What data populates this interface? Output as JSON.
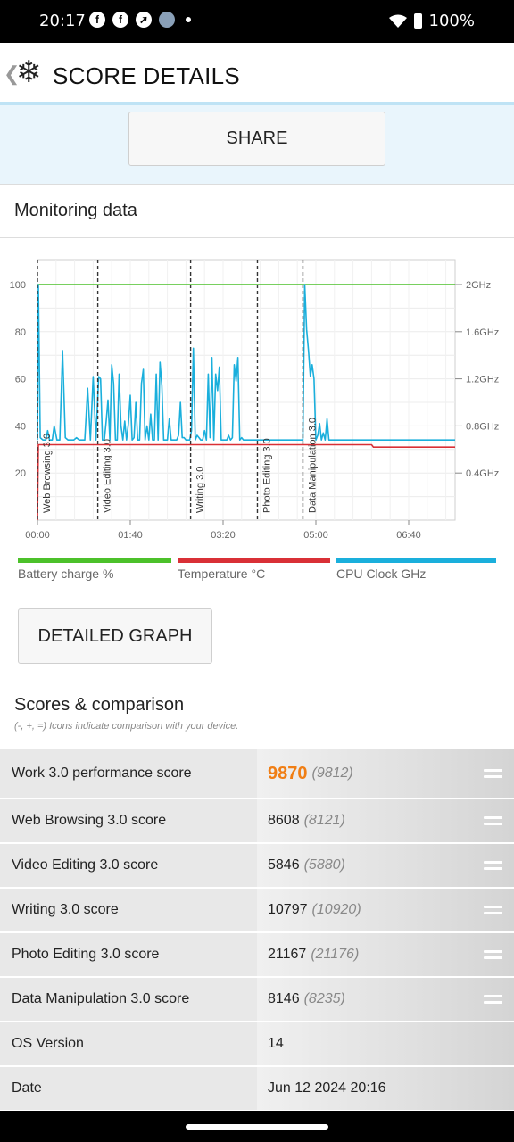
{
  "status_bar": {
    "time": "20:17",
    "battery": "100%",
    "app_icons": [
      "facebook-icon",
      "facebook-icon",
      "compass-icon",
      "avatar-icon"
    ]
  },
  "header": {
    "title": "SCORE DETAILS",
    "logo_icon": "snowflake-icon",
    "back_icon": "chevron-left-icon"
  },
  "share_label": "SHARE",
  "monitoring": {
    "title": "Monitoring data"
  },
  "chart_data": {
    "type": "line",
    "x_ticks": [
      "00:00",
      "01:40",
      "03:20",
      "05:00",
      "06:40"
    ],
    "y_left_ticks": [
      "20",
      "40",
      "60",
      "80",
      "100"
    ],
    "y_right_ticks": [
      "0.4GHz",
      "0.8GHz",
      "1.2GHz",
      "1.6GHz",
      "2GHz"
    ],
    "ylim_left": [
      0,
      100
    ],
    "ylim_right": [
      0,
      2
    ],
    "grid": true,
    "segments": [
      {
        "label": "Web Browsing 3.0",
        "start_min": 0
      },
      {
        "label": "Video Editing 3.0",
        "start_min": 65
      },
      {
        "label": "Writing 3.0",
        "start_min": 165
      },
      {
        "label": "Photo Editing 3.0",
        "start_min": 237
      },
      {
        "label": "Data Manipulation 3.0",
        "start_min": 286
      }
    ],
    "series": [
      {
        "name": "Battery charge %",
        "color": "#4cc12a",
        "axis": "left",
        "points": [
          [
            0,
            100
          ],
          [
            450,
            100
          ]
        ]
      },
      {
        "name": "Temperature °C",
        "color": "#d93036",
        "axis": "left",
        "points": [
          [
            0,
            0
          ],
          [
            1,
            32
          ],
          [
            360,
            32
          ],
          [
            362,
            31
          ],
          [
            450,
            31
          ]
        ]
      },
      {
        "name": "CPU Clock GHz",
        "color": "#1aafdc",
        "axis": "right",
        "points": [
          [
            0,
            0.68
          ],
          [
            1,
            2.0
          ],
          [
            3,
            0.7
          ],
          [
            6,
            0.68
          ],
          [
            9,
            0.68
          ],
          [
            11,
            0.76
          ],
          [
            13,
            0.68
          ],
          [
            16,
            0.68
          ],
          [
            18,
            0.8
          ],
          [
            21,
            0.68
          ],
          [
            24,
            0.68
          ],
          [
            27,
            1.44
          ],
          [
            30,
            0.7
          ],
          [
            33,
            0.68
          ],
          [
            36,
            0.68
          ],
          [
            39,
            0.68
          ],
          [
            42,
            0.7
          ],
          [
            45,
            0.68
          ],
          [
            48,
            0.68
          ],
          [
            51,
            0.68
          ],
          [
            54,
            1.12
          ],
          [
            57,
            0.68
          ],
          [
            60,
            1.22
          ],
          [
            63,
            0.68
          ],
          [
            66,
            1.22
          ],
          [
            68,
            1.2
          ],
          [
            70,
            0.68
          ],
          [
            72,
            0.68
          ],
          [
            74,
            0.84
          ],
          [
            76,
            1.02
          ],
          [
            78,
            0.68
          ],
          [
            80,
            1.32
          ],
          [
            82,
            1.16
          ],
          [
            84,
            0.68
          ],
          [
            86,
            0.68
          ],
          [
            88,
            1.24
          ],
          [
            90,
            0.8
          ],
          [
            92,
            0.68
          ],
          [
            94,
            0.84
          ],
          [
            96,
            0.68
          ],
          [
            98,
            0.82
          ],
          [
            100,
            1.06
          ],
          [
            102,
            0.68
          ],
          [
            104,
            0.7
          ],
          [
            106,
            1.0
          ],
          [
            108,
            0.68
          ],
          [
            110,
            0.68
          ],
          [
            112,
            1.16
          ],
          [
            114,
            1.28
          ],
          [
            116,
            0.68
          ],
          [
            118,
            0.8
          ],
          [
            120,
            0.68
          ],
          [
            122,
            0.9
          ],
          [
            124,
            0.68
          ],
          [
            126,
            0.68
          ],
          [
            128,
            1.24
          ],
          [
            130,
            0.68
          ],
          [
            132,
            1.34
          ],
          [
            134,
            1.14
          ],
          [
            136,
            0.68
          ],
          [
            138,
            0.68
          ],
          [
            140,
            0.68
          ],
          [
            142,
            0.86
          ],
          [
            144,
            0.68
          ],
          [
            146,
            0.68
          ],
          [
            148,
            0.68
          ],
          [
            150,
            0.68
          ],
          [
            152,
            0.72
          ],
          [
            154,
            1.0
          ],
          [
            156,
            0.7
          ],
          [
            158,
            0.7
          ],
          [
            160,
            0.68
          ],
          [
            162,
            0.68
          ],
          [
            164,
            0.68
          ],
          [
            166,
            0.76
          ],
          [
            168,
            1.46
          ],
          [
            170,
            0.68
          ],
          [
            172,
            0.72
          ],
          [
            174,
            0.7
          ],
          [
            176,
            0.68
          ],
          [
            178,
            0.68
          ],
          [
            180,
            0.76
          ],
          [
            182,
            0.68
          ],
          [
            184,
            1.24
          ],
          [
            186,
            0.7
          ],
          [
            188,
            1.38
          ],
          [
            190,
            0.68
          ],
          [
            192,
            1.24
          ],
          [
            194,
            1.1
          ],
          [
            196,
            1.3
          ],
          [
            198,
            0.68
          ],
          [
            200,
            0.68
          ],
          [
            202,
            0.68
          ],
          [
            204,
            0.68
          ],
          [
            206,
            0.72
          ],
          [
            208,
            0.68
          ],
          [
            210,
            0.7
          ],
          [
            212,
            1.32
          ],
          [
            214,
            1.18
          ],
          [
            216,
            1.38
          ],
          [
            218,
            0.68
          ],
          [
            220,
            0.7
          ],
          [
            222,
            0.68
          ],
          [
            224,
            0.68
          ],
          [
            226,
            0.68
          ],
          [
            228,
            0.68
          ],
          [
            230,
            0.68
          ],
          [
            232,
            0.68
          ],
          [
            234,
            0.68
          ],
          [
            236,
            0.68
          ],
          [
            238,
            0.68
          ],
          [
            240,
            0.68
          ],
          [
            242,
            0.68
          ],
          [
            244,
            0.68
          ],
          [
            246,
            0.68
          ],
          [
            248,
            0.68
          ],
          [
            250,
            0.68
          ],
          [
            252,
            0.68
          ],
          [
            254,
            0.68
          ],
          [
            256,
            0.68
          ],
          [
            258,
            0.68
          ],
          [
            260,
            0.68
          ],
          [
            262,
            0.68
          ],
          [
            264,
            0.68
          ],
          [
            266,
            0.68
          ],
          [
            268,
            0.68
          ],
          [
            270,
            0.68
          ],
          [
            272,
            0.68
          ],
          [
            274,
            0.68
          ],
          [
            276,
            0.68
          ],
          [
            278,
            0.68
          ],
          [
            280,
            0.68
          ],
          [
            282,
            0.68
          ],
          [
            284,
            0.68
          ],
          [
            286,
            0.68
          ],
          [
            288,
            2.0
          ],
          [
            290,
            1.62
          ],
          [
            292,
            1.44
          ],
          [
            294,
            1.22
          ],
          [
            296,
            1.32
          ],
          [
            298,
            1.2
          ],
          [
            300,
            0.68
          ],
          [
            302,
            0.72
          ],
          [
            304,
            0.82
          ],
          [
            306,
            0.68
          ],
          [
            308,
            0.74
          ],
          [
            310,
            0.68
          ],
          [
            312,
            0.86
          ],
          [
            314,
            0.68
          ],
          [
            316,
            0.68
          ],
          [
            318,
            0.68
          ],
          [
            320,
            0.68
          ],
          [
            322,
            0.68
          ],
          [
            324,
            0.68
          ],
          [
            326,
            0.68
          ],
          [
            328,
            0.68
          ],
          [
            330,
            0.68
          ],
          [
            332,
            0.68
          ],
          [
            334,
            0.68
          ],
          [
            336,
            0.68
          ],
          [
            338,
            0.68
          ],
          [
            340,
            0.68
          ],
          [
            342,
            0.68
          ],
          [
            344,
            0.68
          ],
          [
            346,
            0.68
          ],
          [
            348,
            0.68
          ],
          [
            350,
            0.68
          ],
          [
            352,
            0.68
          ],
          [
            354,
            0.68
          ],
          [
            356,
            0.68
          ],
          [
            358,
            0.68
          ],
          [
            360,
            0.68
          ],
          [
            362,
            0.68
          ],
          [
            364,
            0.68
          ],
          [
            366,
            0.68
          ],
          [
            368,
            0.68
          ],
          [
            370,
            0.68
          ],
          [
            372,
            0.68
          ],
          [
            374,
            0.68
          ],
          [
            376,
            0.68
          ],
          [
            378,
            0.68
          ],
          [
            380,
            0.68
          ],
          [
            382,
            0.68
          ],
          [
            384,
            0.68
          ],
          [
            386,
            0.68
          ],
          [
            388,
            0.68
          ],
          [
            390,
            0.68
          ],
          [
            392,
            0.68
          ],
          [
            394,
            0.68
          ],
          [
            396,
            0.68
          ],
          [
            398,
            0.68
          ],
          [
            400,
            0.68
          ],
          [
            402,
            0.68
          ],
          [
            404,
            0.68
          ],
          [
            406,
            0.68
          ],
          [
            408,
            0.68
          ],
          [
            410,
            0.68
          ],
          [
            412,
            0.68
          ],
          [
            414,
            0.68
          ],
          [
            416,
            0.68
          ],
          [
            418,
            0.68
          ],
          [
            420,
            0.68
          ],
          [
            422,
            0.68
          ],
          [
            424,
            0.68
          ],
          [
            426,
            0.68
          ],
          [
            428,
            0.68
          ],
          [
            430,
            0.68
          ],
          [
            432,
            0.68
          ],
          [
            434,
            0.68
          ],
          [
            436,
            0.68
          ],
          [
            438,
            0.68
          ],
          [
            440,
            0.68
          ],
          [
            442,
            0.68
          ],
          [
            444,
            0.68
          ],
          [
            446,
            0.68
          ],
          [
            448,
            0.68
          ],
          [
            450,
            0.68
          ]
        ]
      }
    ]
  },
  "legend": [
    {
      "label": "Battery charge %",
      "color": "#4cc12a"
    },
    {
      "label": "Temperature °C",
      "color": "#d93036"
    },
    {
      "label": "CPU Clock GHz",
      "color": "#1aafdc"
    }
  ],
  "detailed_graph_label": "DETAILED GRAPH",
  "scores": {
    "title": "Scores & comparison",
    "subtitle": "(-, +, =) Icons indicate comparison with your device.",
    "rows": [
      {
        "label": "Work 3.0 performance score",
        "value": "9870",
        "compare": "(9812)",
        "icon": "equal-icon"
      },
      {
        "label": "Web Browsing 3.0 score",
        "value": "8608",
        "compare": "(8121)",
        "icon": "equal-icon"
      },
      {
        "label": "Video Editing 3.0 score",
        "value": "5846",
        "compare": "(5880)",
        "icon": "equal-icon"
      },
      {
        "label": "Writing 3.0 score",
        "value": "10797",
        "compare": "(10920)",
        "icon": "equal-icon"
      },
      {
        "label": "Photo Editing 3.0 score",
        "value": "21167",
        "compare": "(21176)",
        "icon": "equal-icon"
      },
      {
        "label": "Data Manipulation 3.0 score",
        "value": "8146",
        "compare": "(8235)",
        "icon": "equal-icon"
      },
      {
        "label": "OS Version",
        "value": "14",
        "compare": ""
      },
      {
        "label": "Date",
        "value": "Jun 12 2024 20:16",
        "compare": ""
      }
    ]
  }
}
